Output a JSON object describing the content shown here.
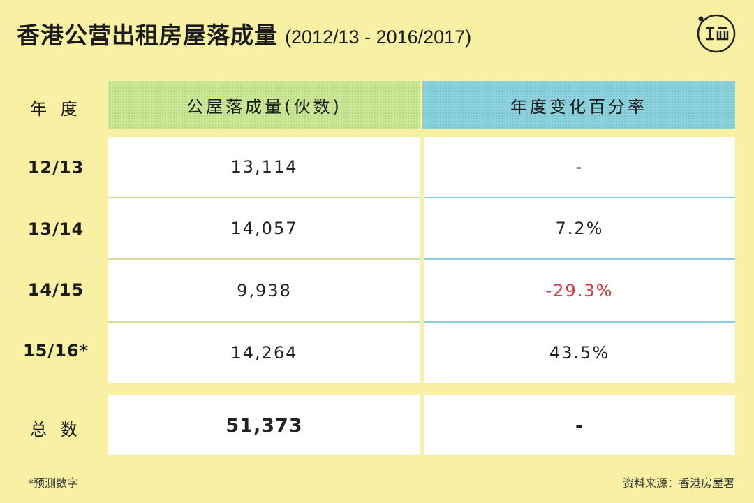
{
  "title": "香港公营出租房屋落成量",
  "subtitle": "(2012/13 - 2016/2017)",
  "logo_icon": "duan-logo-icon",
  "table": {
    "header_year": "年 度",
    "header_col1": "公屋落成量(伙数)",
    "header_col2": "年度变化百分率",
    "rows": [
      {
        "year": "12/13",
        "units": "13,114",
        "change": "-"
      },
      {
        "year": "13/14",
        "units": "14,057",
        "change": "7.2%"
      },
      {
        "year": "14/15",
        "units": "9,938",
        "change": "-29.3%"
      },
      {
        "year": "15/16*",
        "units": "14,264",
        "change": "43.5%"
      }
    ],
    "total_label": "总 数",
    "total_units": "51,373",
    "total_change": "-"
  },
  "footnote": "*预测数字",
  "source": "资料来源：香港房屋署",
  "colors": {
    "background": "#f8f1a3",
    "header_green": "#cde79a",
    "header_blue": "#8fd2de",
    "negative": "#d8343e"
  },
  "chart_data": {
    "type": "table",
    "title": "香港公营出租房屋落成量",
    "subtitle": "(2012/13 - 2016/2017)",
    "columns": [
      "年 度",
      "公屋落成量(伙数)",
      "年度变化百分率"
    ],
    "categories": [
      "12/13",
      "13/14",
      "14/15",
      "15/16*"
    ],
    "series": [
      {
        "name": "公屋落成量(伙数)",
        "values": [
          13114,
          14057,
          9938,
          14264
        ]
      },
      {
        "name": "年度变化百分率",
        "values": [
          null,
          7.2,
          -29.3,
          43.5
        ]
      }
    ],
    "total": 51373
  }
}
